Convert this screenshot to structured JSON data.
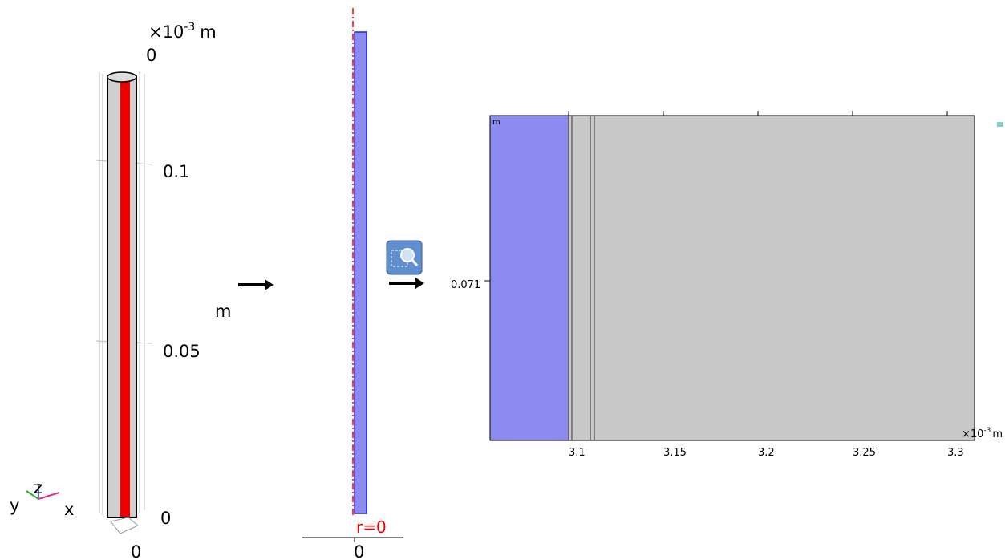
{
  "view3d": {
    "exponent": {
      "base": "×10",
      "power": "-3",
      "unit": "m"
    },
    "ticks": [
      "0",
      "0.1",
      "0.05",
      "0"
    ],
    "unit": "m",
    "bottom_tick": "0",
    "triad": {
      "y": "y",
      "z": "z",
      "x": "x"
    }
  },
  "view2d": {
    "axis_label": "r=0",
    "tick": "0"
  },
  "zoom_view": {
    "corner_unit": "m",
    "ytick": "0.071",
    "xticks": [
      "3.1",
      "3.15",
      "3.2",
      "3.25",
      "3.3"
    ],
    "exponent": {
      "base": "×10",
      "power": "-3",
      "unit": "m"
    }
  }
}
